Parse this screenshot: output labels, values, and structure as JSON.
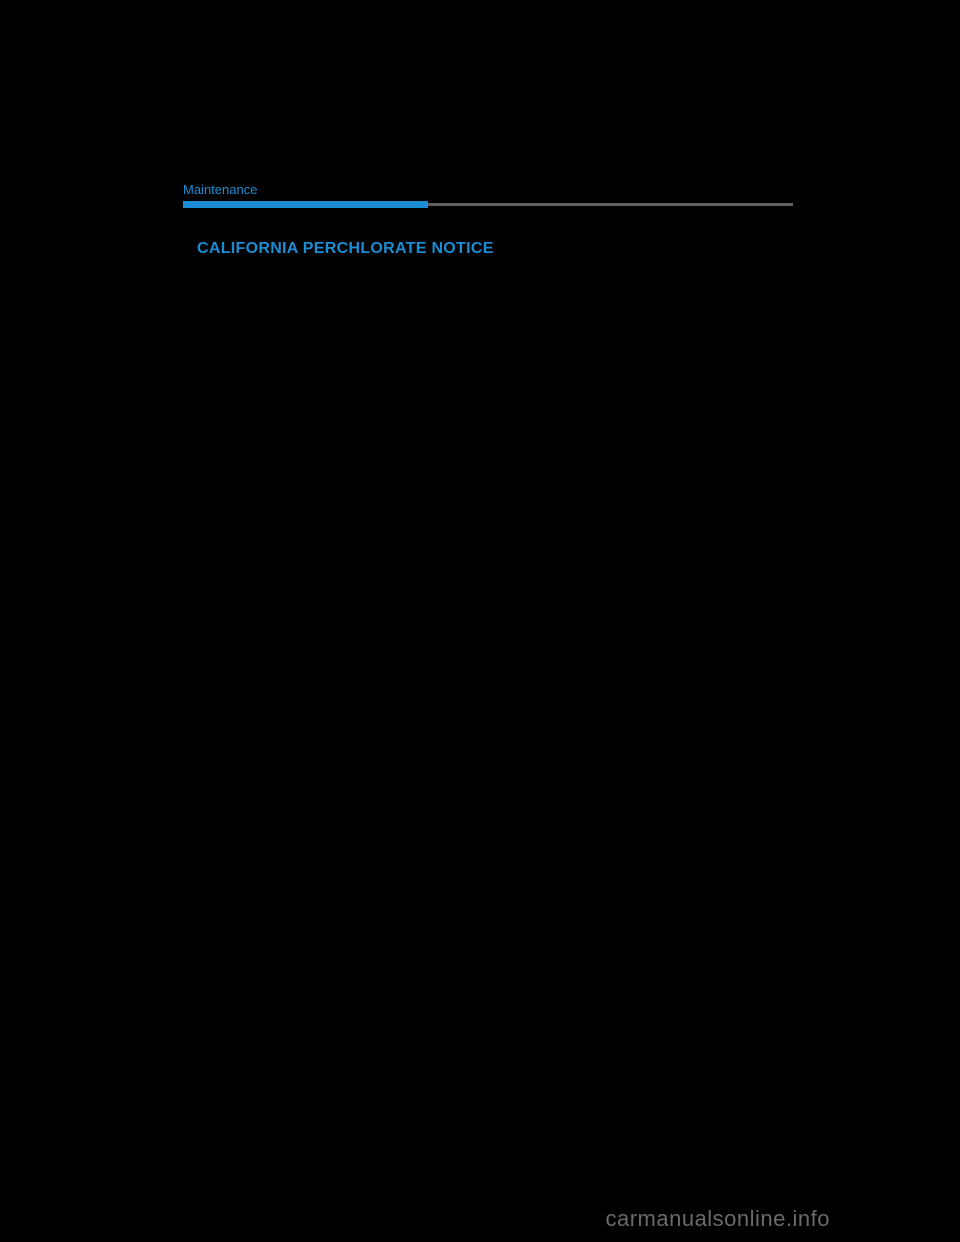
{
  "section": {
    "label": "Maintenance"
  },
  "heading": {
    "text": "CALIFORNIA PERCHLORATE NOTICE"
  },
  "watermark": {
    "text": "carmanualsonline.info"
  },
  "colors": {
    "accent_blue": "#1b8dd4",
    "divider_gray": "#605e60",
    "background": "#000000",
    "watermark_gray": "#6a6a6a"
  },
  "layout": {
    "divider_blue_width": 245,
    "divider_total_width": 610,
    "divider_blue_height": 7,
    "divider_gray_height": 3
  }
}
